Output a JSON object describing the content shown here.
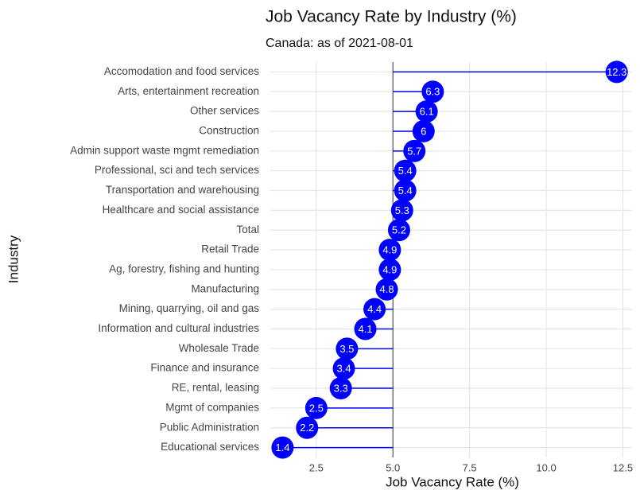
{
  "chart_data": {
    "type": "lollipop",
    "title": "Job Vacancy Rate by Industry (%)",
    "subtitle": "Canada: as of 2021-08-01",
    "x_label": "Job Vacancy Rate (%)",
    "y_label": "Industry",
    "categories": [
      "Accomodation and food services",
      "Arts, entertainment recreation",
      "Other services",
      "Construction",
      "Admin support waste mgmt remediation",
      "Professional, sci and tech services",
      "Transportation and warehousing",
      "Healthcare and social assistance",
      "Total",
      "Retail Trade",
      "Ag, forestry, fishing and hunting",
      "Manufacturing",
      "Mining, quarrying, oil and gas",
      "Information and cultural industries",
      "Wholesale Trade",
      "Finance and insurance",
      "RE, rental, leasing",
      "Mgmt of companies",
      "Public Administration",
      "Educational services"
    ],
    "values": [
      12.3,
      6.3,
      6.1,
      6,
      5.7,
      5.4,
      5.4,
      5.3,
      5.2,
      4.9,
      4.9,
      4.8,
      4.4,
      4.1,
      3.5,
      3.4,
      3.3,
      2.5,
      2.2,
      1.4
    ],
    "baseline": 5,
    "color": "#0000ff",
    "xlim": [
      1.0,
      12.8
    ],
    "xticks": [
      2.5,
      {
        "value": 5,
        "label": "5.0"
      },
      7.5,
      {
        "value": 10,
        "label": "10.0"
      },
      12.5
    ],
    "grid": true
  }
}
